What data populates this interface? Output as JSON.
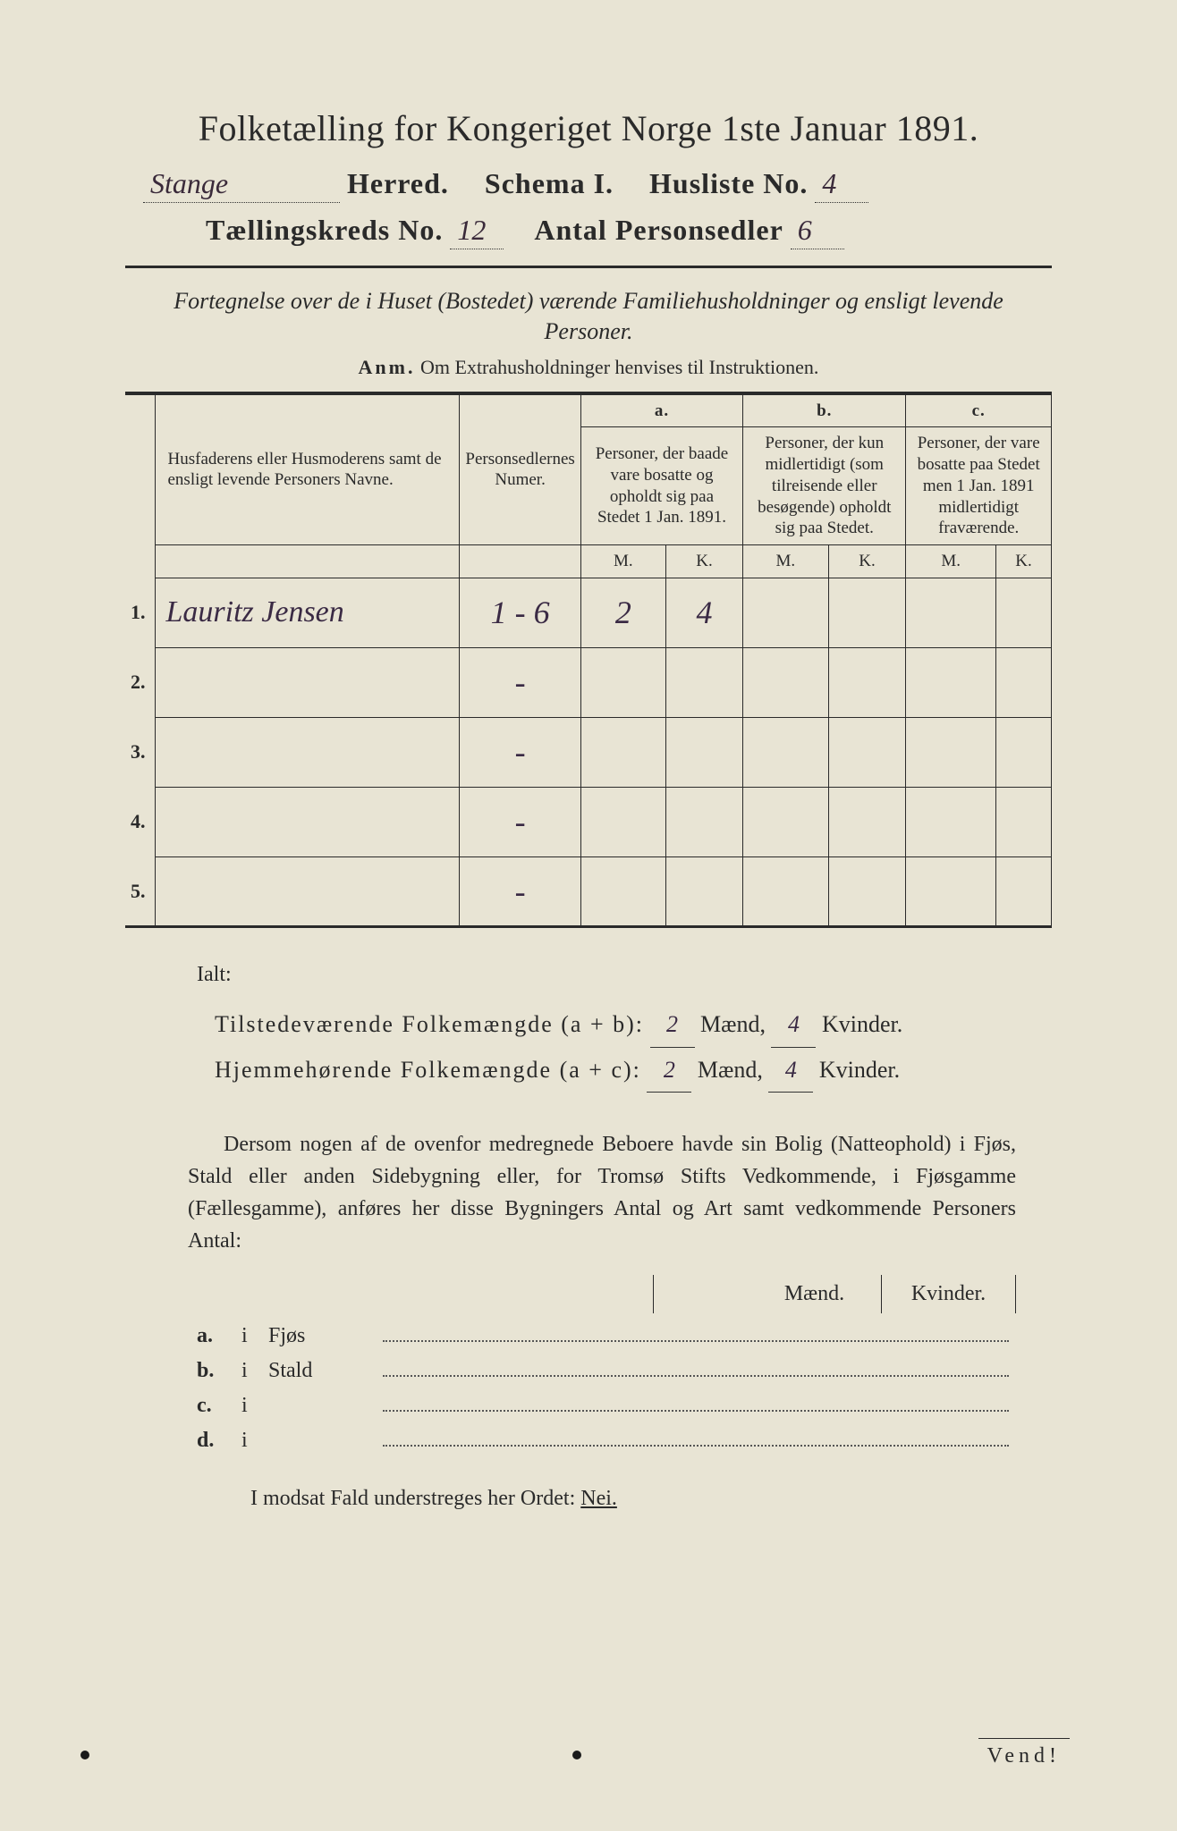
{
  "colors": {
    "paper": "#e8e4d4",
    "ink": "#2a2a2a",
    "handwriting": "#3a2a44"
  },
  "title": "Folketælling for Kongeriget Norge 1ste Januar 1891.",
  "header": {
    "herred_value": "Stange",
    "herred_label": "Herred.",
    "schema_label": "Schema I.",
    "husliste_label": "Husliste No.",
    "husliste_value": "4",
    "kreds_label": "Tællingskreds No.",
    "kreds_value": "12",
    "antal_label": "Antal Personsedler",
    "antal_value": "6"
  },
  "subtitle": "Fortegnelse over de i Huset (Bostedet) værende Familiehusholdninger og ensligt levende Personer.",
  "anm_label": "Anm.",
  "anm_text": "Om Extrahusholdninger henvises til Instruktionen.",
  "columns": {
    "col1": "Husfaderens eller Husmoderens samt de ensligt levende Personers Navne.",
    "col2": "Personsedlernes Numer.",
    "a_label": "a.",
    "a_text": "Personer, der baade vare bosatte og opholdt sig paa Stedet 1 Jan. 1891.",
    "b_label": "b.",
    "b_text": "Personer, der kun midlertidigt (som tilreisende eller besøgende) opholdt sig paa Stedet.",
    "c_label": "c.",
    "c_text": "Personer, der vare bosatte paa Stedet men 1 Jan. 1891 midlertidigt fraværende.",
    "M": "M.",
    "K": "K."
  },
  "rows": [
    {
      "n": "1.",
      "name": "Lauritz Jensen",
      "num": "1 - 6",
      "aM": "2",
      "aK": "4",
      "bM": "",
      "bK": "",
      "cM": "",
      "cK": ""
    },
    {
      "n": "2.",
      "name": "",
      "num": "-",
      "aM": "",
      "aK": "",
      "bM": "",
      "bK": "",
      "cM": "",
      "cK": ""
    },
    {
      "n": "3.",
      "name": "",
      "num": "-",
      "aM": "",
      "aK": "",
      "bM": "",
      "bK": "",
      "cM": "",
      "cK": ""
    },
    {
      "n": "4.",
      "name": "",
      "num": "-",
      "aM": "",
      "aK": "",
      "bM": "",
      "bK": "",
      "cM": "",
      "cK": ""
    },
    {
      "n": "5.",
      "name": "",
      "num": "-",
      "aM": "",
      "aK": "",
      "bM": "",
      "bK": "",
      "cM": "",
      "cK": ""
    }
  ],
  "totals": {
    "ialt": "Ialt:",
    "line1_label": "Tilstedeværende Folkemængde (a + b):",
    "line2_label": "Hjemmehørende Folkemængde (a + c):",
    "maend": "Mænd,",
    "kvinder": "Kvinder.",
    "v1m": "2",
    "v1k": "4",
    "v2m": "2",
    "v2k": "4"
  },
  "dersom": "Dersom nogen af de ovenfor medregnede Beboere havde sin Bolig (Natteophold) i Fjøs, Stald eller anden Sidebygning eller, for Tromsø Stifts Vedkommende, i Fjøsgamme (Fællesgamme), anføres her disse Bygningers Antal og Art samt vedkommende Personers Antal:",
  "byg": {
    "maend": "Mænd.",
    "kvinder": "Kvinder.",
    "items": [
      {
        "k": "a.",
        "i": "i",
        "lbl": "Fjøs"
      },
      {
        "k": "b.",
        "i": "i",
        "lbl": "Stald"
      },
      {
        "k": "c.",
        "i": "i",
        "lbl": ""
      },
      {
        "k": "d.",
        "i": "i",
        "lbl": ""
      }
    ]
  },
  "modsat": "I modsat Fald understreges her Ordet:",
  "nei": "Nei.",
  "vend": "Vend!"
}
